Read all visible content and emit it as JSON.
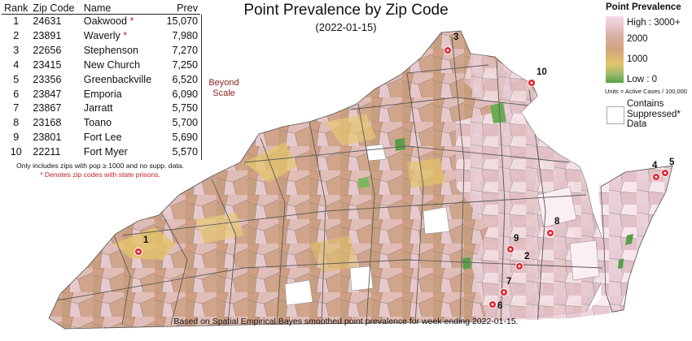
{
  "title": "Point Prevalence by Zip Code",
  "subtitle": "(2022-01-15)",
  "table": {
    "headers": {
      "rank": "Rank",
      "zip": "Zip Code",
      "name": "Name",
      "prev": "Prev"
    },
    "rows": [
      {
        "rank": "1",
        "zip": "24631",
        "name": "Oakwood",
        "star": "*",
        "prev": "15,070"
      },
      {
        "rank": "2",
        "zip": "23891",
        "name": "Waverly",
        "star": "*",
        "prev": "7,980"
      },
      {
        "rank": "3",
        "zip": "22656",
        "name": "Stephenson",
        "star": "",
        "prev": "7,270"
      },
      {
        "rank": "4",
        "zip": "23415",
        "name": "New Church",
        "star": "",
        "prev": "7,250"
      },
      {
        "rank": "5",
        "zip": "23356",
        "name": "Greenbackville",
        "star": "",
        "prev": "6,520"
      },
      {
        "rank": "6",
        "zip": "23847",
        "name": "Emporia",
        "star": "",
        "prev": "6,090"
      },
      {
        "rank": "7",
        "zip": "23867",
        "name": "Jarratt",
        "star": "",
        "prev": "5,750"
      },
      {
        "rank": "8",
        "zip": "23168",
        "name": "Toano",
        "star": "",
        "prev": "5,700"
      },
      {
        "rank": "9",
        "zip": "23801",
        "name": "Fort Lee",
        "star": "",
        "prev": "5,690"
      },
      {
        "rank": "10",
        "zip": "22211",
        "name": "Fort Myer",
        "star": "",
        "prev": "5,570"
      }
    ]
  },
  "beyond_scale": {
    "line1": "Beyond",
    "line2": "Scale"
  },
  "notes": {
    "line1": "Only includes zips with pop ≥ 1000 and no supp. data.",
    "line2": "* Denotes zip codes with state prisons."
  },
  "legend": {
    "title": "Point Prevalence",
    "high": "High : 3000+",
    "mid_high": "2000",
    "mid_low": "1000",
    "low": "Low : 0",
    "units": "Units = Active Cases / 100,000",
    "suppressed_line1": "Contains",
    "suppressed_line2": "Suppressed*",
    "suppressed_line3": "Data",
    "colors": {
      "high": "#f6dbe9",
      "upper": "#d9b2a8",
      "mid": "#d4a27c",
      "lower": "#e2c56c",
      "low": "#57a048"
    }
  },
  "markers": [
    "1",
    "2",
    "3",
    "4",
    "5",
    "6",
    "7",
    "8",
    "9",
    "10"
  ],
  "footer": "Based on Spatial Empirical Bayes smoothed point prevalence for week ending 2022-01-15."
}
